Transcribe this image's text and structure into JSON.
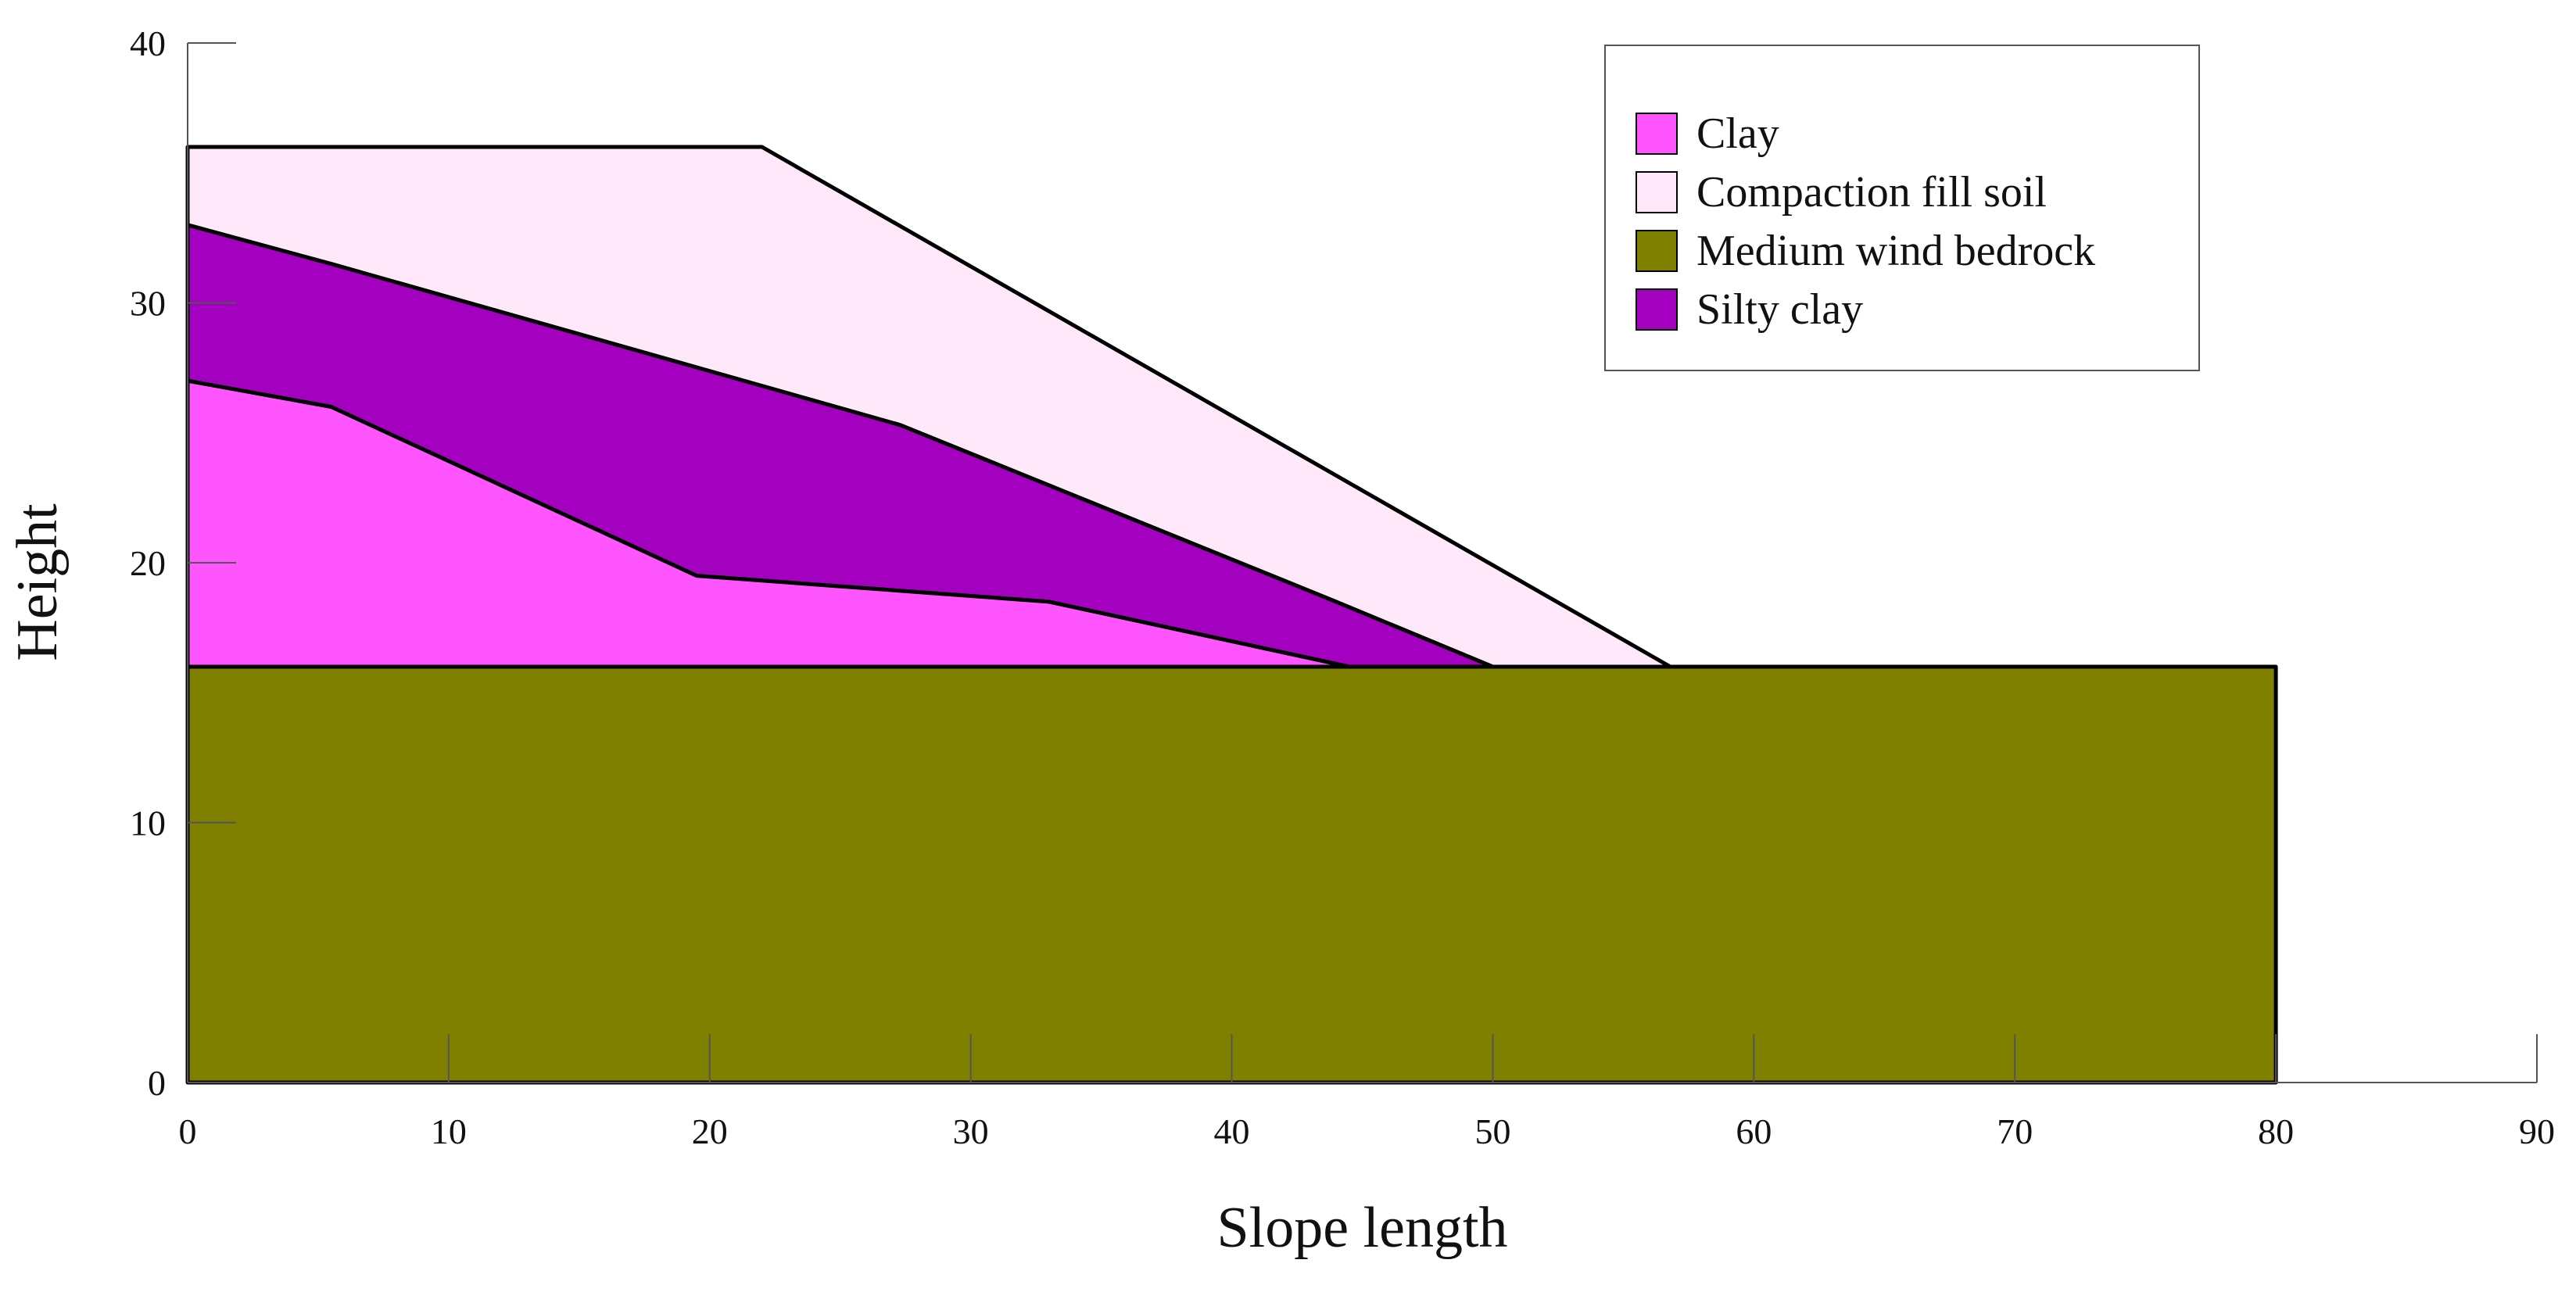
{
  "chart_data": {
    "type": "area",
    "xlabel": "Slope length",
    "ylabel": "Height",
    "xlim": [
      0,
      90
    ],
    "ylim": [
      0,
      40
    ],
    "x_ticks": [
      0,
      10,
      20,
      30,
      40,
      50,
      60,
      70,
      80,
      90
    ],
    "y_ticks": [
      0,
      10,
      20,
      30,
      40
    ],
    "grid": false,
    "legend_position": "top-right",
    "layers": [
      {
        "name": "Medium wind bedrock",
        "color": "#808000",
        "points": [
          [
            0,
            0
          ],
          [
            80,
            0
          ],
          [
            80,
            16
          ],
          [
            0,
            16
          ]
        ]
      },
      {
        "name": "Compaction fill soil",
        "color": "#FFE8FA",
        "points": [
          [
            0,
            36
          ],
          [
            22,
            36
          ],
          [
            56.8,
            16
          ],
          [
            50,
            16
          ],
          [
            44,
            18.5
          ],
          [
            27.3,
            25.3
          ],
          [
            5.5,
            31.5
          ],
          [
            0,
            33
          ]
        ]
      },
      {
        "name": "Silty clay",
        "color": "#A400C0",
        "points": [
          [
            0,
            33
          ],
          [
            5.5,
            31.5
          ],
          [
            27.3,
            25.3
          ],
          [
            44,
            18.5
          ],
          [
            50,
            16
          ],
          [
            44.5,
            16
          ],
          [
            33,
            18.5
          ],
          [
            19.5,
            19.5
          ],
          [
            5.5,
            26
          ],
          [
            0,
            27
          ]
        ]
      },
      {
        "name": "Clay",
        "color": "#FF55FF",
        "points": [
          [
            0,
            27
          ],
          [
            5.5,
            26
          ],
          [
            19.5,
            19.5
          ],
          [
            33,
            18.5
          ],
          [
            44.5,
            16
          ],
          [
            0,
            16
          ]
        ]
      }
    ],
    "legend": [
      {
        "name": "Clay",
        "color": "#FF55FF"
      },
      {
        "name": "Compaction fill soil",
        "color": "#FFE8FA"
      },
      {
        "name": "Medium wind bedrock",
        "color": "#808000"
      },
      {
        "name": "Silty clay",
        "color": "#A400C0"
      }
    ]
  }
}
